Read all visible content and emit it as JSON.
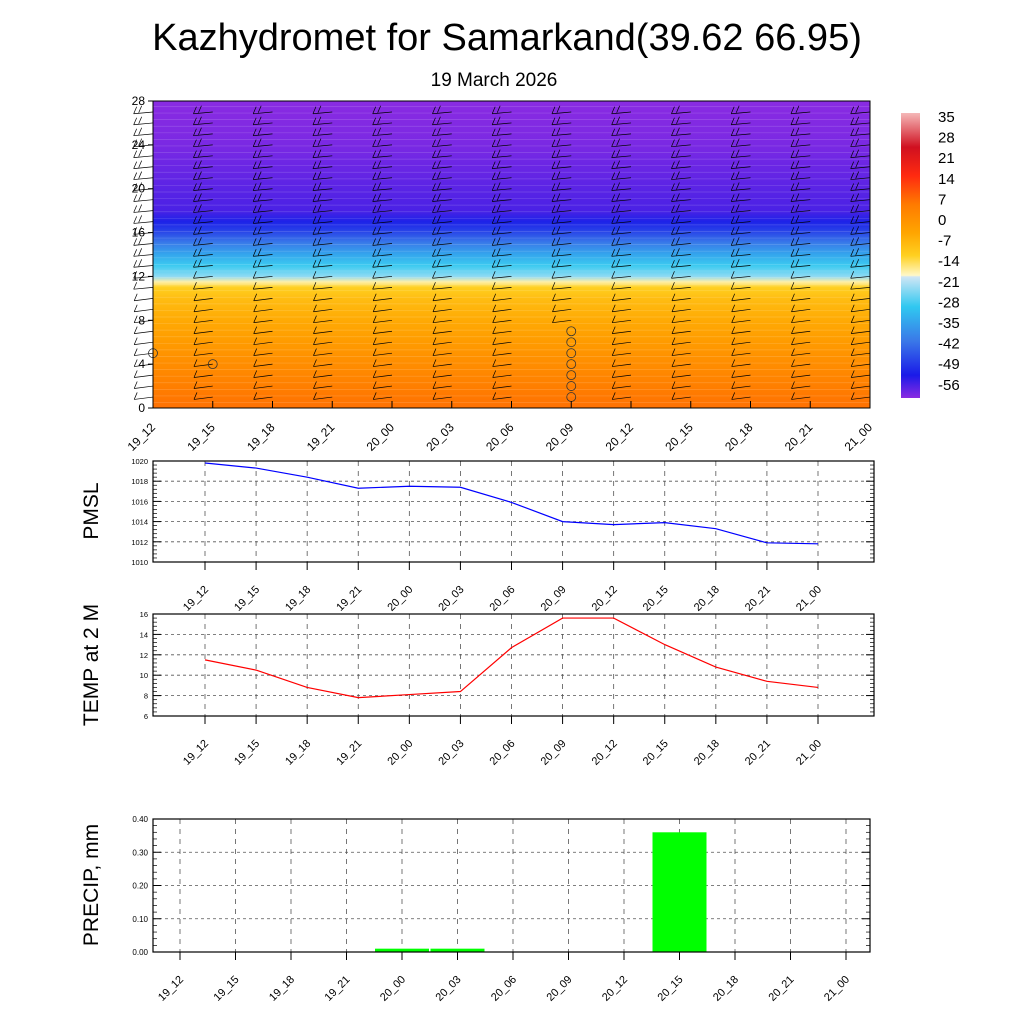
{
  "title": "Kazhydromet for Samarkand(39.62 66.95)",
  "subtitle": "19 March 2026",
  "chart_data": [
    {
      "type": "heatmap",
      "name": "vertical temperature cross-section with wind barbs",
      "x": [
        "19_12",
        "19_15",
        "19_18",
        "19_21",
        "20_00",
        "20_03",
        "20_06",
        "20_09",
        "20_12",
        "20_15",
        "20_18",
        "20_21",
        "21_00"
      ],
      "yticks": [
        0,
        4,
        8,
        12,
        16,
        20,
        24,
        28
      ],
      "ylim": [
        0,
        28
      ],
      "profile_heights": [
        0,
        2,
        4,
        6,
        8,
        10,
        11,
        11.5,
        12,
        13,
        14,
        15,
        16,
        17,
        18,
        20,
        22,
        24,
        28
      ],
      "profile_temps": [
        10,
        8,
        5,
        2,
        -1,
        -5,
        -9,
        -13,
        -20,
        -27,
        -34,
        -41,
        -48,
        -53,
        -57,
        -58,
        -59,
        -60,
        -61
      ],
      "colorbar": {
        "labels": [
          "35",
          "28",
          "21",
          "14",
          "7",
          "0",
          "-7",
          "-14",
          "-21",
          "-28",
          "-35",
          "-42",
          "-49",
          "-56"
        ],
        "range": [
          -60,
          38
        ]
      },
      "calm_markers": [
        "19_12",
        "19_15",
        "20_09"
      ]
    },
    {
      "type": "line",
      "ylabel": "PMSL",
      "x": [
        "19_12",
        "19_15",
        "19_18",
        "19_21",
        "20_00",
        "20_03",
        "20_06",
        "20_09",
        "20_12",
        "20_15",
        "20_18",
        "20_21",
        "21_00"
      ],
      "values": [
        1019.8,
        1019.3,
        1018.4,
        1017.3,
        1017.5,
        1017.4,
        1015.9,
        1014.0,
        1013.7,
        1013.9,
        1013.3,
        1011.9,
        1011.8
      ],
      "yticks": [
        "1010",
        "1012",
        "1014",
        "1016",
        "1018",
        "1020"
      ],
      "ylim": [
        1010,
        1020
      ],
      "color": "#0000ff"
    },
    {
      "type": "line",
      "ylabel": "TEMP at 2 M",
      "x": [
        "19_12",
        "19_15",
        "19_18",
        "19_21",
        "20_00",
        "20_03",
        "20_06",
        "20_09",
        "20_12",
        "20_15",
        "20_18",
        "20_21",
        "21_00"
      ],
      "values": [
        11.5,
        10.5,
        8.8,
        7.8,
        8.1,
        8.4,
        12.7,
        15.6,
        15.6,
        13.0,
        10.8,
        9.4,
        8.8
      ],
      "yticks": [
        "6",
        "8",
        "10",
        "12",
        "14",
        "16"
      ],
      "ylim": [
        6,
        16
      ],
      "color": "#ff0000"
    },
    {
      "type": "bar",
      "ylabel": "PRECIP, mm",
      "categories": [
        "19_12",
        "19_15",
        "19_18",
        "19_21",
        "20_00",
        "20_03",
        "20_06",
        "20_09",
        "20_12",
        "20_15",
        "20_18",
        "20_21",
        "21_00"
      ],
      "values": [
        0,
        0,
        0,
        0,
        0.01,
        0.01,
        0,
        0,
        0,
        0.36,
        0,
        0,
        0
      ],
      "yticks": [
        "0.00",
        "0.10",
        "0.20",
        "0.30",
        "0.40"
      ],
      "ylim": [
        0,
        0.4
      ],
      "color": "#00ff00"
    }
  ]
}
